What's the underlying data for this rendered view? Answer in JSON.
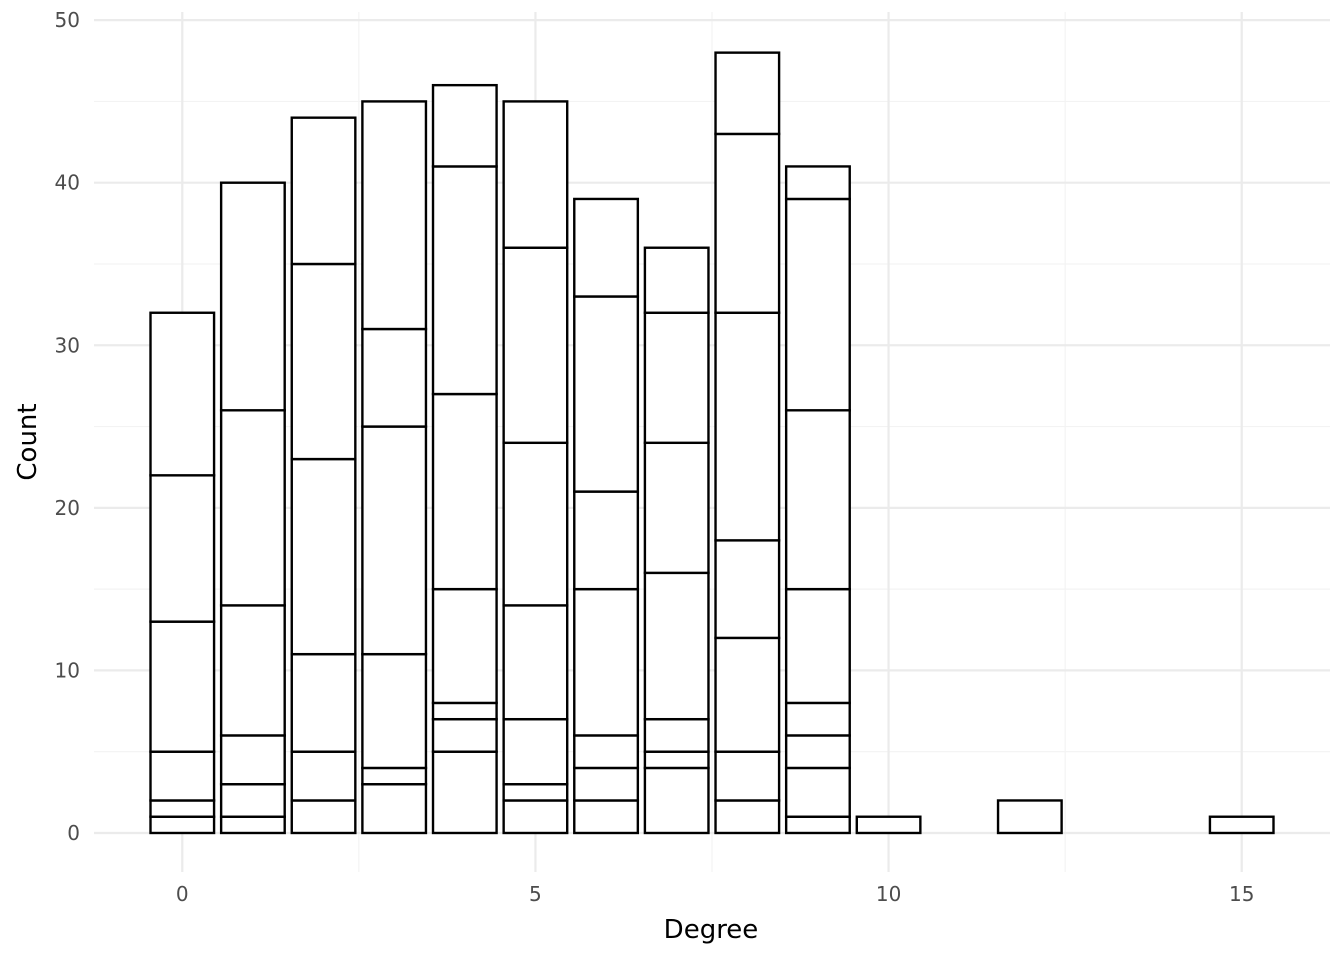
{
  "chart_data": {
    "type": "bar",
    "subtype": "stacked",
    "xlabel": "Degree",
    "ylabel": "Count",
    "xlim": [
      -1.25,
      16.25
    ],
    "ylim": [
      -2.4,
      50.5
    ],
    "x_ticks": [
      0,
      5,
      10,
      15
    ],
    "y_ticks": [
      0,
      10,
      20,
      30,
      40,
      50
    ],
    "grid": true,
    "legend": "none",
    "bar_fill": "#ffffff",
    "bar_outline": "#000000",
    "bars": [
      {
        "x": 0,
        "stack_boundaries": [
          1,
          2,
          5,
          13,
          22,
          32
        ]
      },
      {
        "x": 1,
        "stack_boundaries": [
          1,
          3,
          6,
          14,
          26,
          40
        ]
      },
      {
        "x": 2,
        "stack_boundaries": [
          2,
          5,
          11,
          23,
          35,
          44
        ]
      },
      {
        "x": 3,
        "stack_boundaries": [
          3,
          4,
          11,
          25,
          31,
          45
        ]
      },
      {
        "x": 4,
        "stack_boundaries": [
          5,
          7,
          8,
          15,
          27,
          41,
          46
        ]
      },
      {
        "x": 5,
        "stack_boundaries": [
          2,
          3,
          7,
          14,
          24,
          36,
          45
        ]
      },
      {
        "x": 6,
        "stack_boundaries": [
          2,
          4,
          6,
          15,
          21,
          33,
          39
        ]
      },
      {
        "x": 7,
        "stack_boundaries": [
          4,
          5,
          7,
          16,
          24,
          32,
          36
        ]
      },
      {
        "x": 8,
        "stack_boundaries": [
          2,
          5,
          12,
          18,
          32,
          43,
          48
        ]
      },
      {
        "x": 9,
        "stack_boundaries": [
          1,
          4,
          6,
          8,
          15,
          26,
          39,
          41
        ]
      },
      {
        "x": 10,
        "stack_boundaries": [
          1
        ]
      },
      {
        "x": 12,
        "stack_boundaries": [
          2
        ]
      },
      {
        "x": 15,
        "stack_boundaries": [
          1
        ]
      }
    ]
  }
}
